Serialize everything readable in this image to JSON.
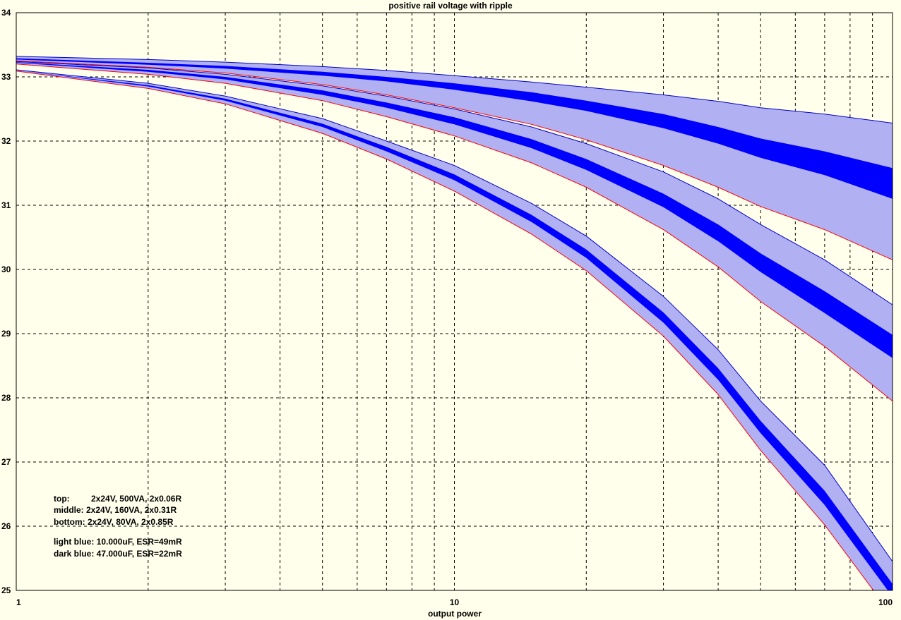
{
  "chart_data": {
    "type": "area",
    "title": "positive rail voltage with ripple",
    "xlabel": "output  power",
    "ylabel": "",
    "x_scale": "log",
    "xlim": [
      1,
      100
    ],
    "ylim": [
      25,
      34
    ],
    "grid": true,
    "x_tick_labels": [
      {
        "value": 1,
        "label": "1"
      },
      {
        "value": 10,
        "label": "10"
      },
      {
        "value": 100,
        "label": "100"
      }
    ],
    "y_ticks": [
      25,
      26,
      27,
      28,
      29,
      30,
      31,
      32,
      33,
      34
    ],
    "x": [
      1,
      2,
      3,
      5,
      7,
      10,
      15,
      20,
      30,
      40,
      50,
      70,
      100
    ],
    "groups": [
      {
        "key": "top",
        "light_upper": [
          33.32,
          33.27,
          33.23,
          33.16,
          33.1,
          33.02,
          32.92,
          32.84,
          32.72,
          32.62,
          32.52,
          32.42,
          32.28
        ],
        "light_lower": [
          33.25,
          33.15,
          33.06,
          32.88,
          32.72,
          32.52,
          32.26,
          32.02,
          31.62,
          31.28,
          30.98,
          30.62,
          30.15
        ],
        "dark_upper": [
          33.29,
          33.22,
          33.17,
          33.08,
          33.0,
          32.9,
          32.76,
          32.63,
          32.42,
          32.22,
          32.04,
          31.84,
          31.58
        ],
        "dark_lower": [
          33.27,
          33.19,
          33.13,
          33.02,
          32.93,
          32.8,
          32.62,
          32.47,
          32.2,
          31.96,
          31.74,
          31.47,
          31.1
        ]
      },
      {
        "key": "middle",
        "light_upper": [
          33.24,
          33.14,
          33.04,
          32.86,
          32.7,
          32.5,
          32.22,
          31.96,
          31.52,
          31.1,
          30.7,
          30.15,
          29.45
        ],
        "light_lower": [
          33.2,
          33.04,
          32.9,
          32.63,
          32.38,
          32.08,
          31.66,
          31.28,
          30.62,
          30.04,
          29.5,
          28.8,
          27.95
        ],
        "dark_upper": [
          33.23,
          33.11,
          33.0,
          32.79,
          32.6,
          32.37,
          32.03,
          31.72,
          31.18,
          30.7,
          30.25,
          29.66,
          28.98
        ],
        "dark_lower": [
          33.22,
          33.08,
          32.96,
          32.72,
          32.52,
          32.26,
          31.89,
          31.55,
          30.97,
          30.44,
          29.96,
          29.32,
          28.62
        ]
      },
      {
        "key": "bottom",
        "light_upper": [
          33.11,
          32.9,
          32.7,
          32.35,
          32.0,
          31.62,
          31.03,
          30.52,
          29.58,
          28.75,
          27.95,
          26.95,
          25.45
        ],
        "light_lower": [
          33.09,
          32.82,
          32.58,
          32.12,
          31.72,
          31.22,
          30.55,
          29.98,
          28.96,
          28.05,
          27.18,
          26.02,
          24.6
        ],
        "dark_upper": [
          33.1,
          32.87,
          32.66,
          32.27,
          31.91,
          31.48,
          30.85,
          30.31,
          29.33,
          28.46,
          27.64,
          26.55,
          25.1
        ],
        "dark_lower": [
          33.1,
          32.85,
          32.63,
          32.22,
          31.84,
          31.39,
          30.74,
          30.18,
          29.17,
          28.28,
          27.45,
          26.33,
          24.9
        ]
      }
    ],
    "annotations": {
      "top_label": "top:",
      "top_spec": "2x24V, 500VA, 2x0.06R",
      "middle_line": "middle: 2x24V, 160VA, 2x0.31R",
      "bottom_line": "bottom: 2x24V, 80VA, 2x0.85R",
      "light_blue_line": "light blue: 10.000uF, ESR=49mR",
      "dark_blue_line": "dark blue: 47.000uF, ESR=22mR"
    },
    "colors": {
      "background": "#ffffeb",
      "light_band": "#b0b0f2",
      "dark_band": "#0000ff",
      "light_edge": "#0000cc",
      "lower_edge": "#ff0000",
      "grid": "#000000"
    }
  }
}
